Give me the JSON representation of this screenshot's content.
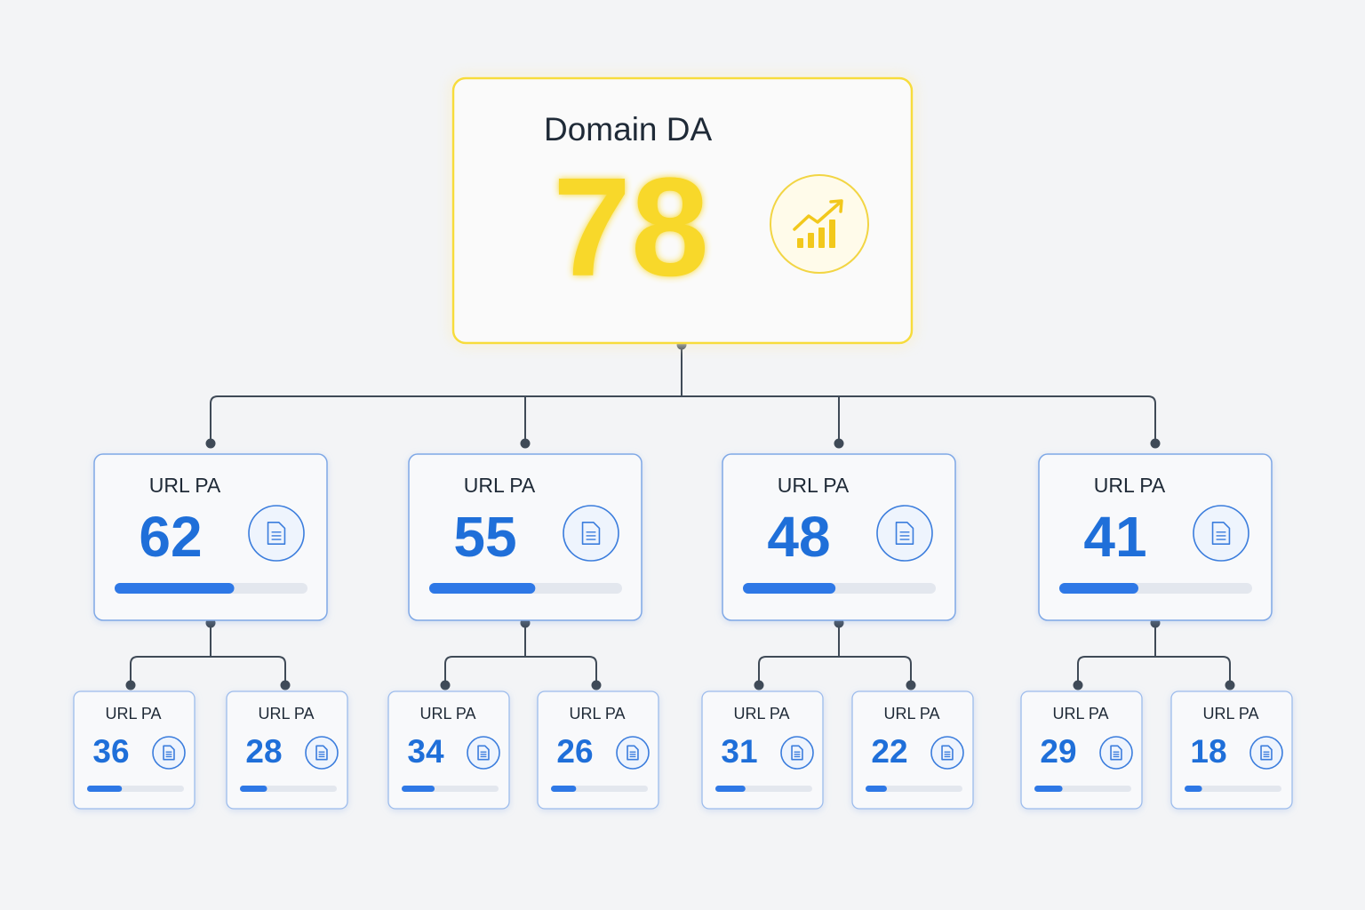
{
  "root": {
    "label": "Domain DA",
    "value": 78,
    "range": [
      0,
      100
    ],
    "children": [
      {
        "label": "URL PA",
        "value": 62,
        "children": [
          {
            "label": "URL PA",
            "value": 36
          },
          {
            "label": "URL PA",
            "value": 28
          }
        ]
      },
      {
        "label": "URL PA",
        "value": 55,
        "children": [
          {
            "label": "URL PA",
            "value": 34
          },
          {
            "label": "URL PA",
            "value": 26
          }
        ]
      },
      {
        "label": "URL PA",
        "value": 48,
        "children": [
          {
            "label": "URL PA",
            "value": 31
          },
          {
            "label": "URL PA",
            "value": 22
          }
        ]
      },
      {
        "label": "URL PA",
        "value": 41,
        "children": [
          {
            "label": "URL PA",
            "value": 29
          },
          {
            "label": "URL PA",
            "value": 18
          }
        ]
      }
    ]
  }
}
